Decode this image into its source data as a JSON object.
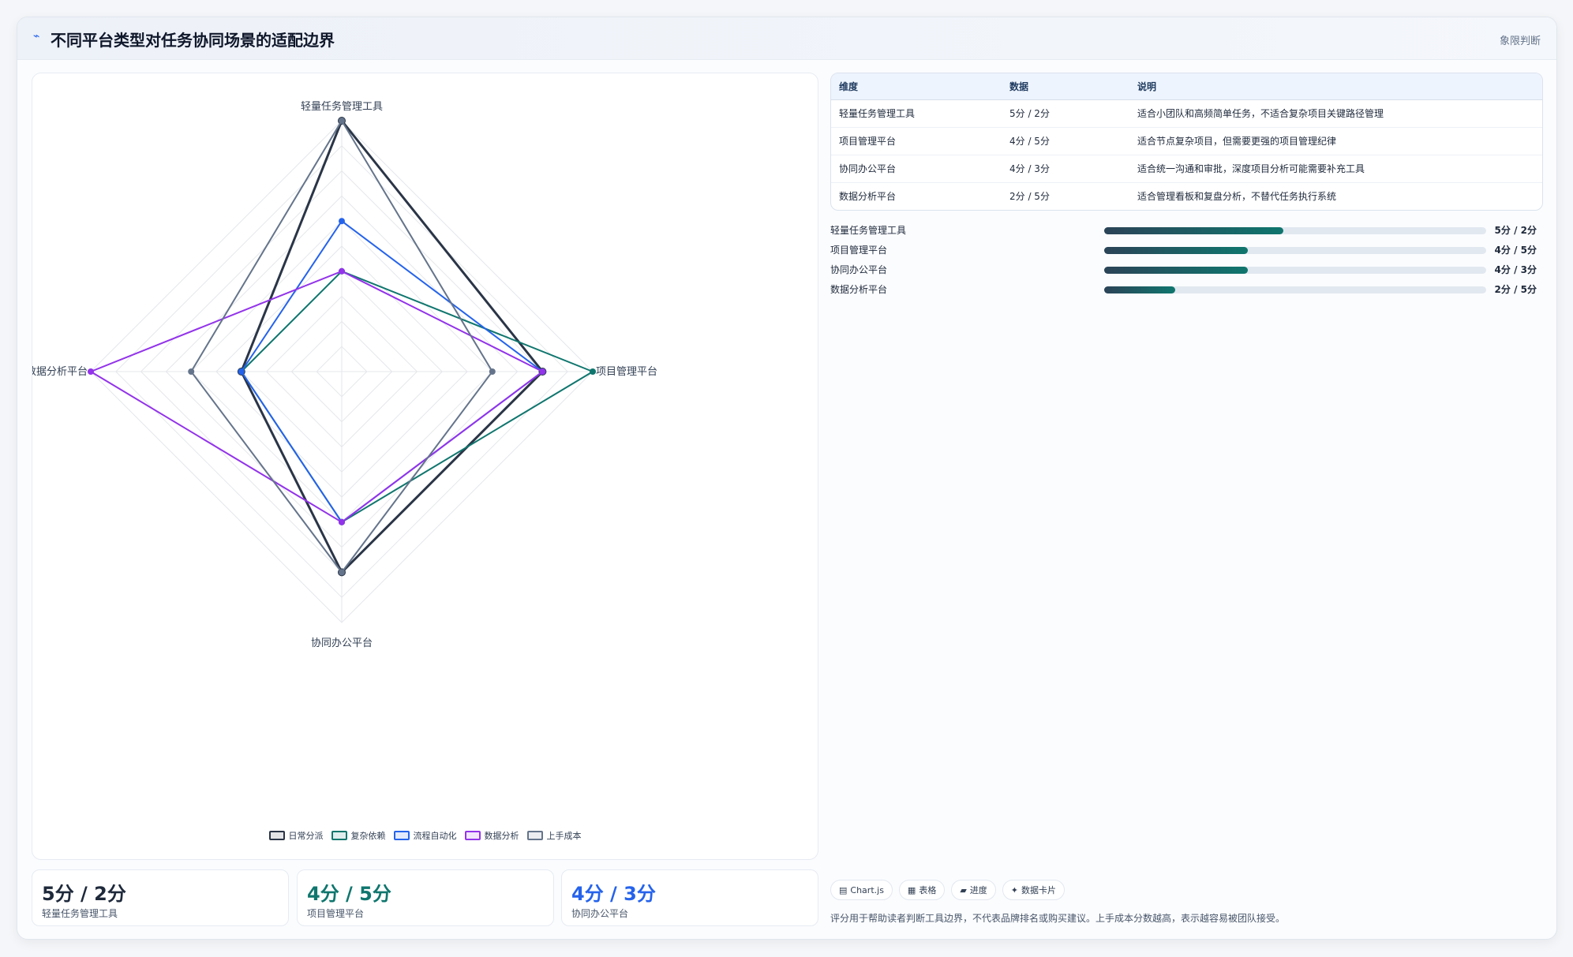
{
  "header": {
    "icon": "trend-icon",
    "title": "不同平台类型对任务协同场景的适配边界",
    "tag": "象限判断"
  },
  "colors": {
    "series": [
      "#2a3547",
      "#0f766e",
      "#2563eb",
      "#9333ea",
      "#64748b"
    ],
    "grid": "#e5e7eb"
  },
  "chart_data": {
    "type": "radar",
    "axes": [
      "轻量任务管理工具",
      "项目管理平台",
      "协同办公平台",
      "数据分析平台"
    ],
    "rlim": [
      0,
      5
    ],
    "series": [
      {
        "name": "日常分派",
        "values": [
          5,
          4,
          4,
          2
        ]
      },
      {
        "name": "复杂依赖",
        "values": [
          2,
          5,
          3,
          2
        ]
      },
      {
        "name": "流程自动化",
        "values": [
          3,
          4,
          3,
          2
        ]
      },
      {
        "name": "数据分析",
        "values": [
          2,
          4,
          3,
          5
        ]
      },
      {
        "name": "上手成本",
        "values": [
          5,
          3,
          4,
          3
        ]
      }
    ],
    "legend_position": "bottom"
  },
  "kpis": [
    {
      "value": "5分 / 2分",
      "label": "轻量任务管理工具",
      "color": "#1e293b"
    },
    {
      "value": "4分 / 5分",
      "label": "项目管理平台",
      "color": "#0f766e"
    },
    {
      "value": "4分 / 3分",
      "label": "协同办公平台",
      "color": "#2563eb"
    }
  ],
  "table": {
    "headers": [
      "维度",
      "数据",
      "说明"
    ],
    "rows": [
      [
        "轻量任务管理工具",
        "5分 / 2分",
        "适合小团队和高频简单任务，不适合复杂项目关键路径管理"
      ],
      [
        "项目管理平台",
        "4分 / 5分",
        "适合节点复杂项目，但需要更强的项目管理纪律"
      ],
      [
        "协同办公平台",
        "4分 / 3分",
        "适合统一沟通和审批，深度项目分析可能需要补充工具"
      ],
      [
        "数据分析平台",
        "2分 / 5分",
        "适合管理看板和复盘分析，不替代任务执行系统"
      ]
    ]
  },
  "bars": [
    {
      "label": "轻量任务管理工具",
      "value": "5分 / 2分",
      "fill": 0.47
    },
    {
      "label": "项目管理平台",
      "value": "4分 / 5分",
      "fill": 0.375
    },
    {
      "label": "协同办公平台",
      "value": "4分 / 3分",
      "fill": 0.375
    },
    {
      "label": "数据分析平台",
      "value": "2分 / 5分",
      "fill": 0.185
    }
  ],
  "chips": [
    {
      "icon": "chart-icon",
      "glyph": "▤",
      "label": "Chart.js"
    },
    {
      "icon": "table-icon",
      "glyph": "▦",
      "label": "表格"
    },
    {
      "icon": "progress-icon",
      "glyph": "▰",
      "label": "进度"
    },
    {
      "icon": "card-icon",
      "glyph": "✦",
      "label": "数据卡片"
    }
  ],
  "footnote": "评分用于帮助读者判断工具边界，不代表品牌排名或购买建议。上手成本分数越高，表示越容易被团队接受。"
}
